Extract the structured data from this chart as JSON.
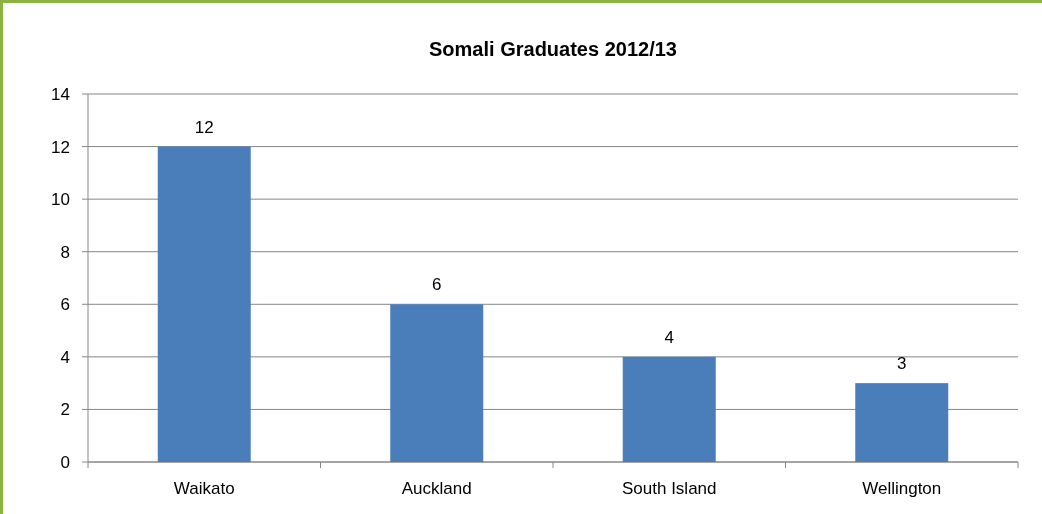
{
  "chart_data": {
    "type": "bar",
    "title": "Somali Graduates 2012/13",
    "categories": [
      "Waikato",
      "Auckland",
      "South Island",
      "Wellington"
    ],
    "values": [
      12,
      6,
      4,
      3
    ],
    "color": "#4a7ebb",
    "ylim": [
      0,
      14
    ],
    "yticks": [
      0,
      2,
      4,
      6,
      8,
      10,
      12,
      14
    ],
    "grid": "y",
    "data_labels": true
  }
}
